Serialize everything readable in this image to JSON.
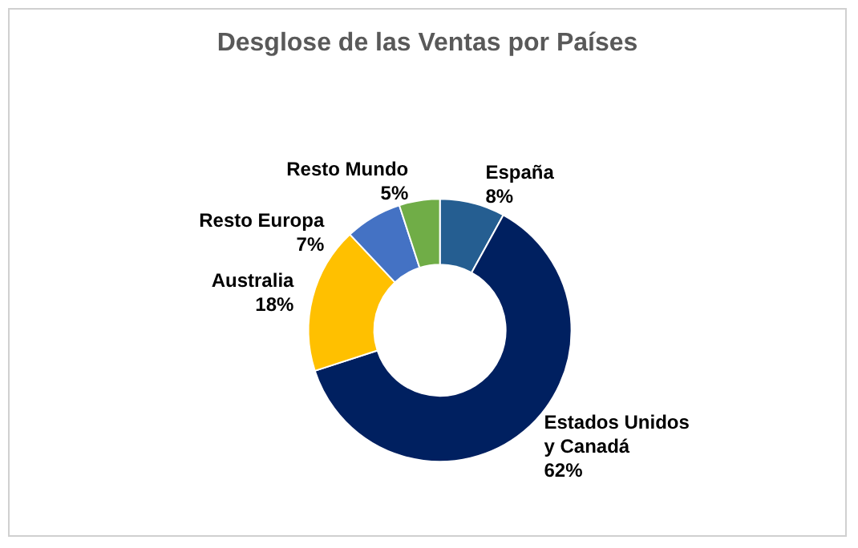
{
  "chart_data": {
    "type": "donut",
    "title": "Desglose de las Ventas por Países",
    "categories": [
      "España",
      "Estados Unidos y Canadá",
      "Australia",
      "Resto Europa",
      "Resto Mundo"
    ],
    "values": [
      8,
      62,
      18,
      7,
      5
    ],
    "colors": [
      "#255e91",
      "#002060",
      "#ffc000",
      "#4472c4",
      "#70ad47"
    ],
    "value_labels": [
      "8%",
      "62%",
      "18%",
      "7%",
      "5%"
    ],
    "legend": false
  }
}
